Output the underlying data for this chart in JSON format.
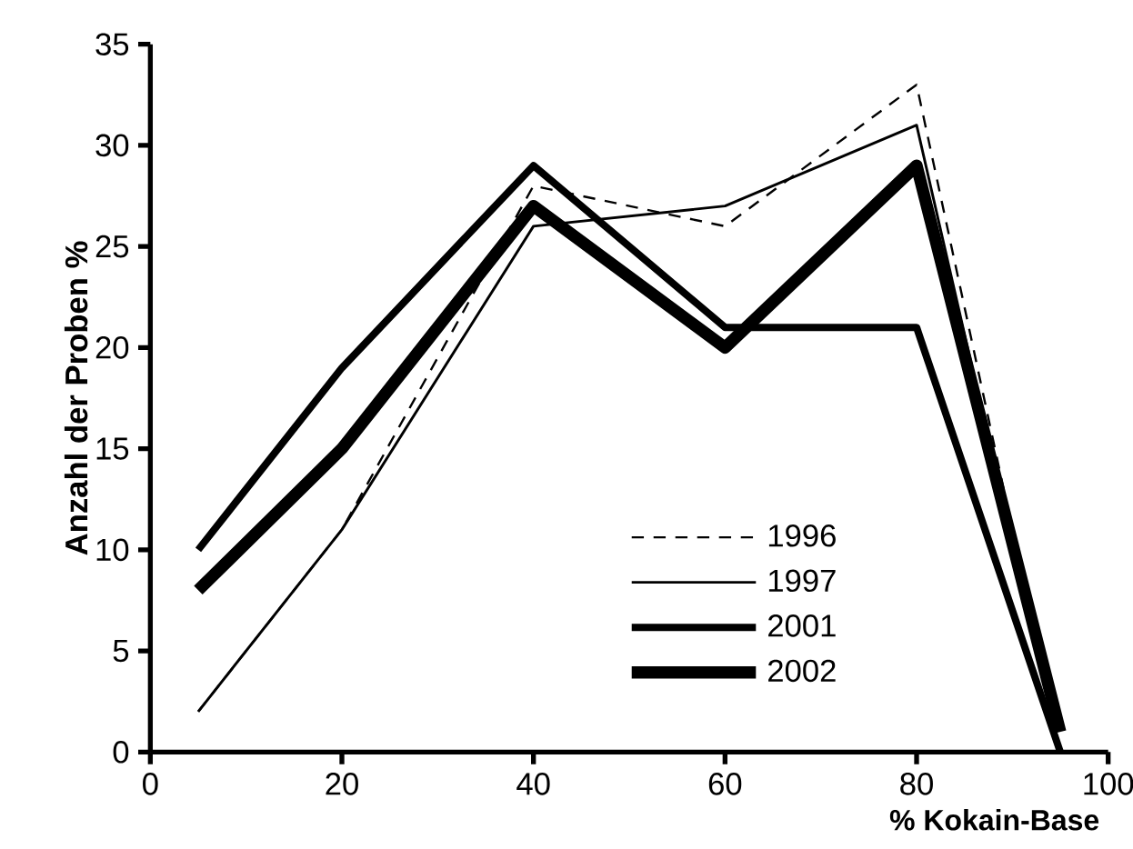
{
  "chart_data": {
    "type": "line",
    "xlabel": "% Kokain-Base",
    "ylabel": "Anzahl der Proben %",
    "x": [
      5,
      20,
      40,
      60,
      80,
      95
    ],
    "series": [
      {
        "name": "1996",
        "color": "#000000",
        "line_style": "dashed",
        "values": [
          2,
          11,
          28,
          26,
          33,
          0
        ]
      },
      {
        "name": "1997",
        "color": "#000000",
        "line_style": "solid",
        "values": [
          2,
          11,
          26,
          27,
          31,
          0
        ]
      },
      {
        "name": "2001",
        "color": "#000000",
        "line_style": "solid",
        "values": [
          10,
          19,
          29,
          21,
          21,
          0
        ]
      },
      {
        "name": "2002",
        "color": "#000000",
        "line_style": "solid",
        "values": [
          8,
          15,
          27,
          20,
          29,
          1
        ]
      }
    ],
    "xlim": [
      0,
      100
    ],
    "xticks": [
      0,
      20,
      40,
      60,
      80,
      100
    ],
    "ylim": [
      0,
      35
    ],
    "yticks": [
      0,
      5,
      10,
      15,
      20,
      25,
      30,
      35
    ],
    "grid": false,
    "legend": "bottom right",
    "marker": "none"
  }
}
